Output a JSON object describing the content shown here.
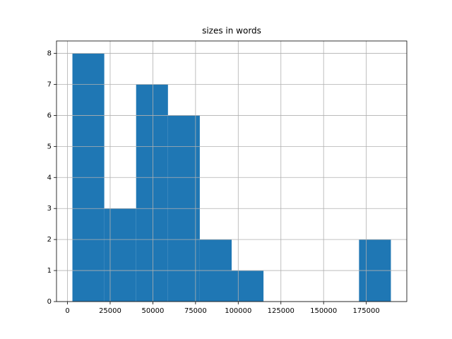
{
  "chart_data": {
    "type": "histogram",
    "title": "sizes in words",
    "bins": [
      2900,
      21550,
      40200,
      58850,
      77500,
      96150,
      114800,
      133450,
      152100,
      170750,
      189400
    ],
    "values": [
      8,
      3,
      7,
      6,
      2,
      1,
      0,
      0,
      0,
      2
    ],
    "color": "#1f77b4",
    "xlim": [
      -6425,
      198725
    ],
    "xticks": [
      0,
      25000,
      50000,
      75000,
      100000,
      125000,
      150000,
      175000
    ],
    "ylim": [
      0,
      8.4
    ],
    "yticks": [
      0,
      1,
      2,
      3,
      4,
      5,
      6,
      7,
      8
    ],
    "grid": true
  }
}
